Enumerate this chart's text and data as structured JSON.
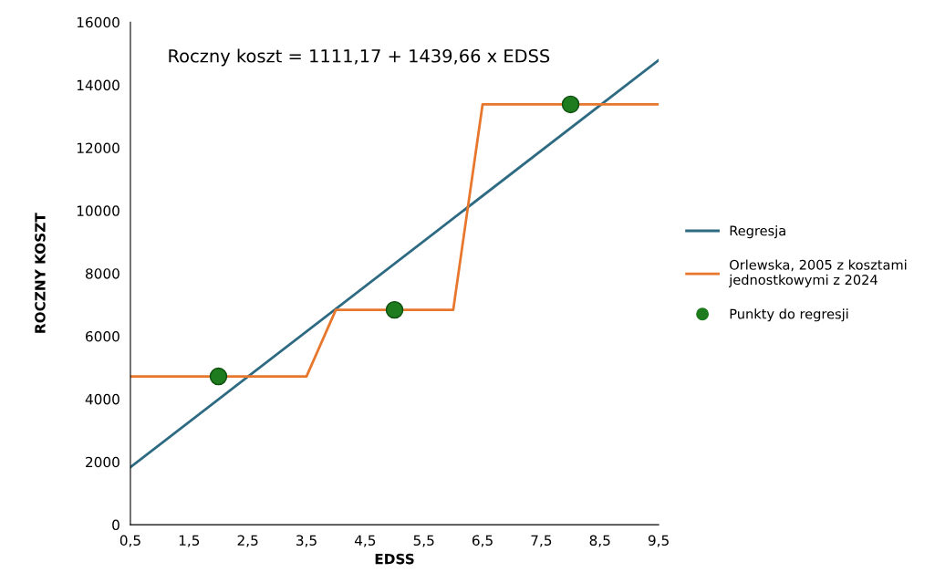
{
  "chart_data": {
    "type": "line",
    "xlabel": "EDSS",
    "ylabel": "ROCZNY KOSZT",
    "annotations": [
      "Roczny koszt = 1111,17 + 1439,66 x EDSS"
    ],
    "xlim": [
      0.5,
      9.5
    ],
    "ylim": [
      0,
      16000
    ],
    "xticks": [
      {
        "value": 0.5,
        "label": "0,5"
      },
      {
        "value": 1.5,
        "label": "1,5"
      },
      {
        "value": 2.5,
        "label": "2,5"
      },
      {
        "value": 3.5,
        "label": "3,5"
      },
      {
        "value": 4.5,
        "label": "4,5"
      },
      {
        "value": 5.5,
        "label": "5,5"
      },
      {
        "value": 6.5,
        "label": "6,5"
      },
      {
        "value": 7.5,
        "label": "7,5"
      },
      {
        "value": 8.5,
        "label": "8,5"
      },
      {
        "value": 9.5,
        "label": "9,5"
      }
    ],
    "yticks": [
      0,
      2000,
      4000,
      6000,
      8000,
      10000,
      12000,
      14000,
      16000
    ],
    "grid": false,
    "legend": "right",
    "series": [
      {
        "name": "Regresja",
        "color": "#2e6b82",
        "x": [
          0.5,
          9.5
        ],
        "values": [
          1830,
          14790
        ]
      },
      {
        "name": "Orlewska, 2005 z kosztami\njednostkowymi z 2024",
        "color": "#e8772e",
        "x": [
          0.5,
          3.5,
          4.0,
          6.0,
          6.5,
          9.5
        ],
        "values": [
          4720,
          4720,
          6840,
          6840,
          13380,
          13380
        ]
      },
      {
        "name": "Punkty do regresji",
        "type": "scatter",
        "color": "#1e7b1e",
        "marker": "circle",
        "x": [
          2,
          5,
          8
        ],
        "values": [
          4720,
          6840,
          13380
        ]
      }
    ]
  }
}
